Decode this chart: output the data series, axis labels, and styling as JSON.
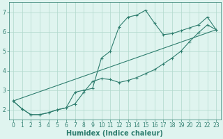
{
  "xlabel": "Humidex (Indice chaleur)",
  "bg_color": "#dff4ef",
  "line_color": "#2e7d6e",
  "xlim": [
    -0.5,
    23.5
  ],
  "ylim": [
    1.5,
    7.5
  ],
  "xticks": [
    0,
    1,
    2,
    3,
    4,
    5,
    6,
    7,
    8,
    9,
    10,
    11,
    12,
    13,
    14,
    15,
    16,
    17,
    18,
    19,
    20,
    21,
    22,
    23
  ],
  "yticks": [
    2,
    3,
    4,
    5,
    6,
    7
  ],
  "curve_spike_x": [
    0,
    1,
    2,
    3,
    4,
    5,
    6,
    7,
    8,
    9,
    10,
    11,
    12,
    13,
    14,
    15,
    16,
    17,
    18,
    19,
    20,
    21,
    22,
    23
  ],
  "curve_spike_y": [
    2.45,
    2.05,
    1.75,
    1.75,
    1.85,
    2.0,
    2.1,
    2.9,
    3.0,
    3.1,
    4.65,
    5.0,
    6.25,
    6.75,
    6.85,
    7.1,
    6.45,
    5.85,
    5.9,
    6.05,
    6.2,
    6.35,
    6.75,
    6.1
  ],
  "curve_slow_x": [
    0,
    1,
    2,
    3,
    4,
    5,
    6,
    7,
    8,
    9,
    10,
    11,
    12,
    13,
    14,
    15,
    16,
    17,
    18,
    19,
    20,
    21,
    22,
    23
  ],
  "curve_slow_y": [
    2.45,
    2.05,
    1.75,
    1.75,
    1.85,
    2.0,
    2.1,
    2.3,
    2.9,
    3.45,
    3.6,
    3.55,
    3.4,
    3.5,
    3.65,
    3.85,
    4.05,
    4.35,
    4.65,
    5.0,
    5.5,
    5.95,
    6.35,
    6.1
  ],
  "line_x": [
    0,
    23
  ],
  "line_y": [
    2.45,
    6.1
  ],
  "tick_fontsize": 5.5,
  "xlabel_fontsize": 7.0
}
